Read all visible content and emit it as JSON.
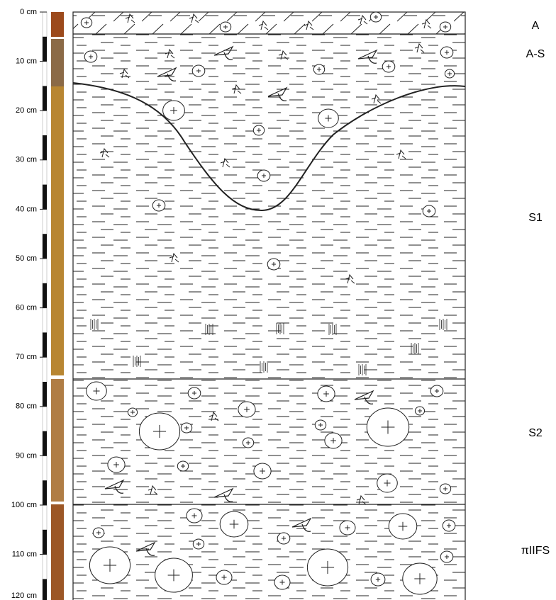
{
  "depth_labels": [
    "0 cm",
    "10 cm",
    "20 cm",
    "30 cm",
    "40 cm",
    "50 cm",
    "60 cm",
    "70 cm",
    "80 cm",
    "90 cm",
    "100 cm",
    "110 cm",
    "120 cm"
  ],
  "horizons": [
    "A",
    "A-S",
    "S1",
    "S2",
    "πIIFS"
  ]
}
